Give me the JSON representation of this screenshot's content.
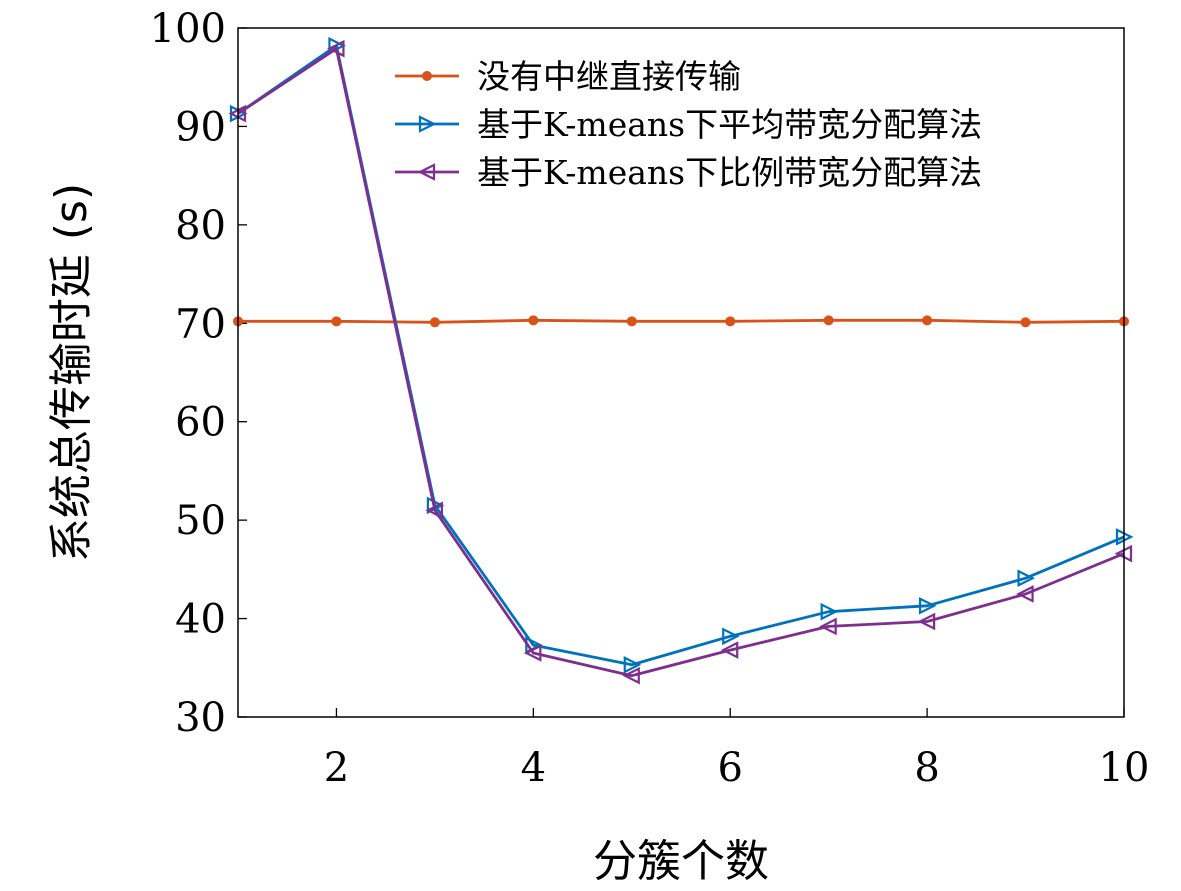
{
  "chart_data": {
    "type": "line",
    "xlabel": "分簇个数",
    "ylabel": "系统总传输时延 (s)",
    "xlim": [
      1,
      10
    ],
    "ylim": [
      30,
      100
    ],
    "xticks": [
      2,
      4,
      6,
      8,
      10
    ],
    "yticks": [
      30,
      40,
      50,
      60,
      70,
      80,
      90,
      100
    ],
    "x": [
      1,
      2,
      3,
      4,
      5,
      6,
      7,
      8,
      9,
      10
    ],
    "legend_position": "top-right",
    "grid": false,
    "series": [
      {
        "name": "没有中继直接传输",
        "color": "#d95319",
        "marker": "circle",
        "values": [
          70.2,
          70.2,
          70.1,
          70.3,
          70.2,
          70.2,
          70.3,
          70.3,
          70.1,
          70.2
        ]
      },
      {
        "name": "基于K-means下平均带宽分配算法",
        "color": "#0072bd",
        "marker": "triangle-right",
        "values": [
          91.3,
          98.2,
          51.5,
          37.3,
          35.3,
          38.2,
          40.7,
          41.3,
          44.1,
          48.3
        ]
      },
      {
        "name": "基于K-means下比例带宽分配算法",
        "color": "#7e2f8e",
        "marker": "triangle-left",
        "values": [
          91.3,
          97.9,
          51.0,
          36.5,
          34.2,
          36.8,
          39.2,
          39.7,
          42.5,
          46.6
        ]
      }
    ]
  }
}
